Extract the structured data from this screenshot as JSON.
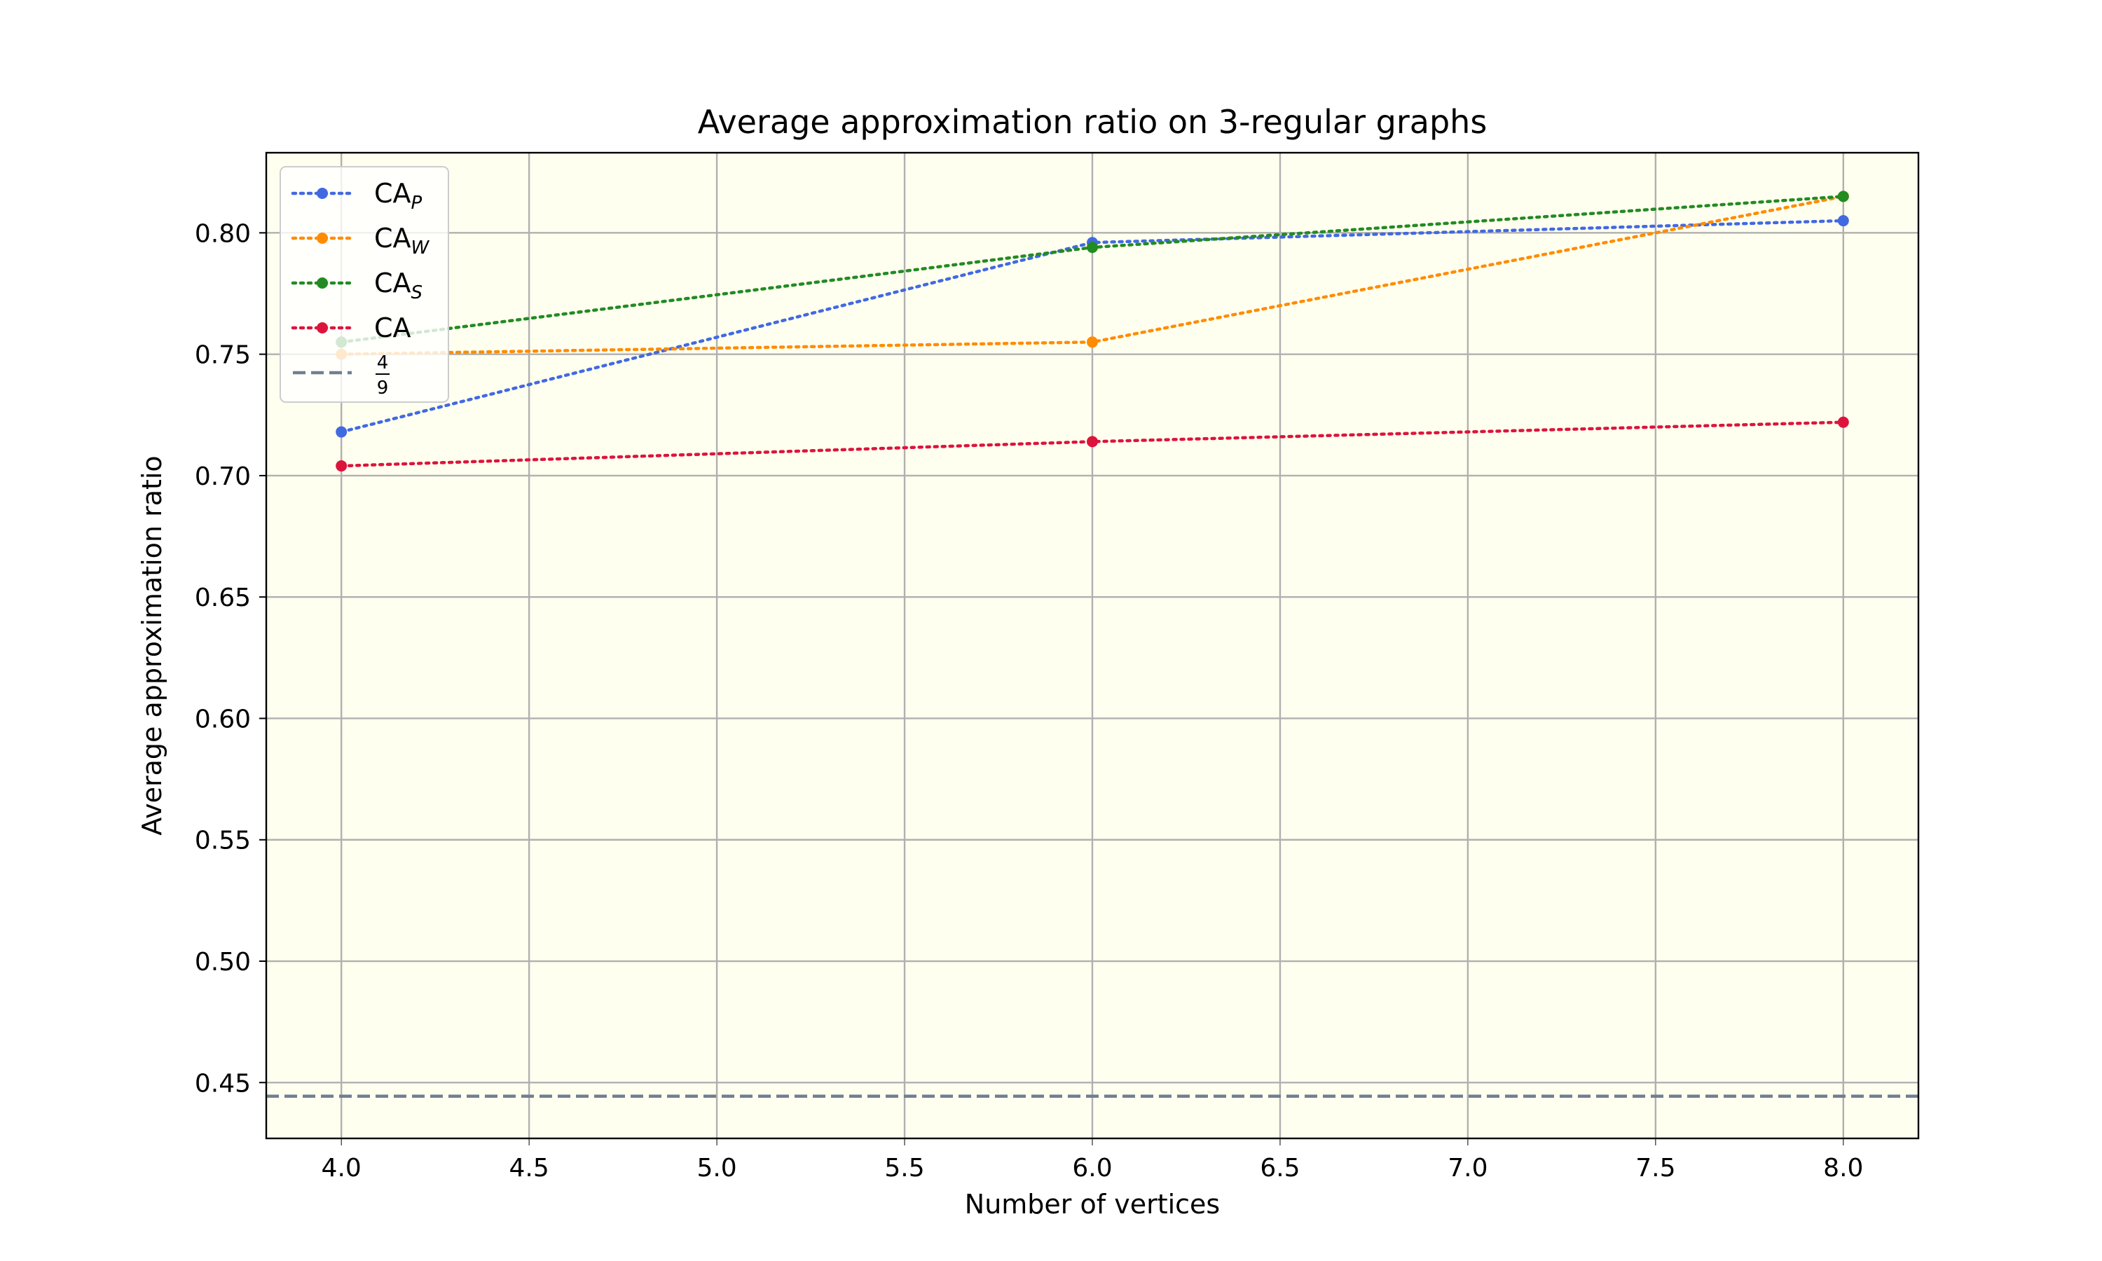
{
  "chart_data": {
    "type": "line",
    "title": "Average approximation ratio on 3-regular graphs",
    "xlabel": "Number of vertices",
    "ylabel": "Average approximation ratio",
    "xlim": [
      3.8,
      8.2
    ],
    "ylim": [
      0.427,
      0.833
    ],
    "xticks": [
      4.0,
      4.5,
      5.0,
      5.5,
      6.0,
      6.5,
      7.0,
      7.5,
      8.0
    ],
    "xtick_labels": [
      "4.0",
      "4.5",
      "5.0",
      "5.5",
      "6.0",
      "6.5",
      "7.0",
      "7.5",
      "8.0"
    ],
    "yticks": [
      0.45,
      0.5,
      0.55,
      0.6,
      0.65,
      0.7,
      0.75,
      0.8
    ],
    "ytick_labels": [
      "0.45",
      "0.50",
      "0.55",
      "0.60",
      "0.65",
      "0.70",
      "0.75",
      "0.80"
    ],
    "grid": true,
    "background": "#fffff0",
    "legend_position": "top-left",
    "x": [
      4,
      6,
      8
    ],
    "series": [
      {
        "name": "CA",
        "subscript": "P",
        "color": "#4169e1",
        "style": "dotted",
        "marker": true,
        "values": [
          0.718,
          0.796,
          0.805
        ]
      },
      {
        "name": "CA",
        "subscript": "W",
        "color": "#ff8c00",
        "style": "dotted",
        "marker": true,
        "values": [
          0.75,
          0.755,
          0.815
        ]
      },
      {
        "name": "CA",
        "subscript": "S",
        "color": "#228b22",
        "style": "dotted",
        "marker": true,
        "values": [
          0.755,
          0.794,
          0.815
        ]
      },
      {
        "name": "CA",
        "subscript": "",
        "color": "#dc143c",
        "style": "dotted",
        "marker": true,
        "values": [
          0.704,
          0.714,
          0.722
        ]
      }
    ],
    "reference_line": {
      "label_numerator": "4",
      "label_denominator": "9",
      "value": 0.4444,
      "color": "#708090",
      "style": "dashed"
    }
  }
}
